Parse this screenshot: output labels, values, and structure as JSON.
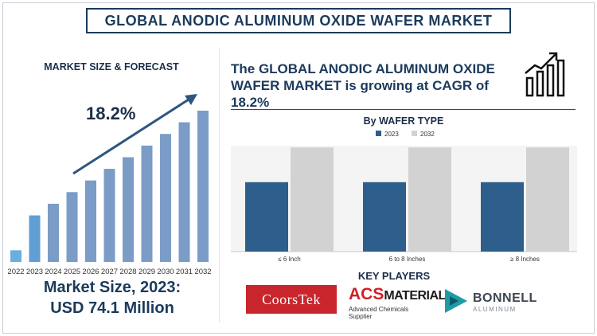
{
  "title": "GLOBAL ANODIC ALUMINUM OXIDE WAFER MARKET",
  "left_panel": {
    "heading": "MARKET SIZE & FORECAST",
    "cagr": "18.2%",
    "market_size_line1": "Market Size, 2023:",
    "market_size_line2": "USD 74.1 Million"
  },
  "headline": "The GLOBAL ANODIC ALUMINUM OXIDE WAFER MARKET is growing at CAGR of 18.2%",
  "key_players": {
    "heading": "KEY PLAYERS",
    "coorstek": "CoorsTek",
    "acs_a": "ACS",
    "acs_b": "MATERIAL",
    "acs_sub": "Advanced Chemicals Supplier",
    "bonnell": "BONNELL",
    "bonnell_sub": "ALUMINUM"
  },
  "colors": {
    "dark_blue": "#2e5e8c",
    "light_blue": "#7a9cc6",
    "highlight_blue": "#5f9fd3",
    "small_bar": "#6aaee0",
    "gray": "#d2d2d2",
    "accent_red": "#c8262c"
  },
  "chart_data": [
    {
      "type": "bar",
      "categories": [
        "2022",
        "2023",
        "2024",
        "2025",
        "2026",
        "2027",
        "2028",
        "2029",
        "2030",
        "2031",
        "2032"
      ],
      "values": [
        1,
        4,
        5,
        6,
        7,
        8,
        9,
        10,
        11,
        12,
        13
      ],
      "title": "",
      "xlabel": "",
      "ylabel": "",
      "annotation": "18.2%",
      "grid": false
    },
    {
      "type": "bar",
      "title": "By WAFER TYPE",
      "categories": [
        "≤ 6 Inch",
        "6 to 8 Inches",
        "≥ 8 Inches"
      ],
      "series": [
        {
          "name": "2023",
          "values": [
            2,
            2,
            2
          ]
        },
        {
          "name": "2032",
          "values": [
            3,
            3,
            3
          ]
        }
      ],
      "ylim": [
        0,
        3.05
      ],
      "legend": "top",
      "grid": false
    }
  ]
}
